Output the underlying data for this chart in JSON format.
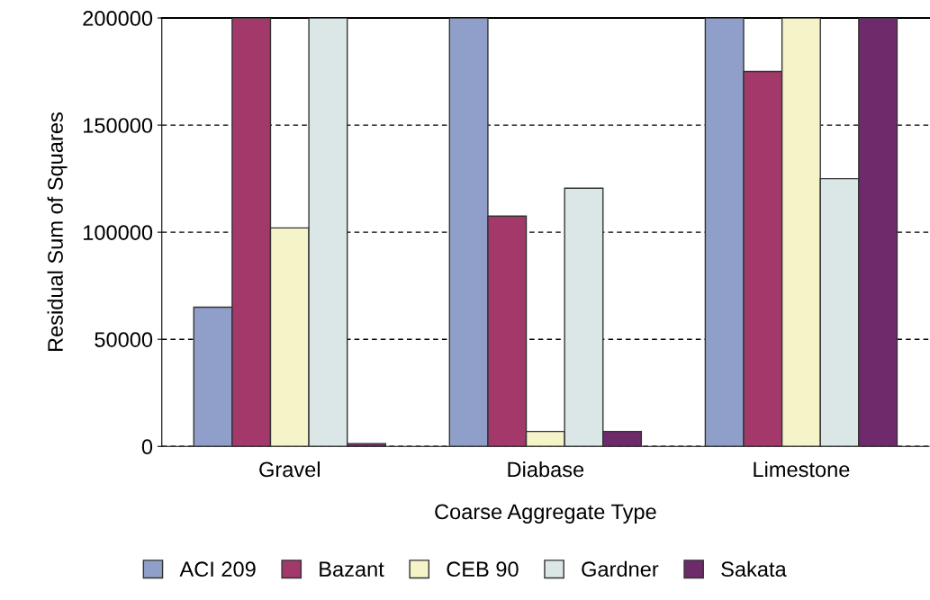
{
  "chart_data": {
    "type": "bar",
    "xlabel": "Coarse Aggregate Type",
    "ylabel": "Residual Sum of Squares",
    "categories": [
      "Gravel",
      "Diabase",
      "Limestone"
    ],
    "series": [
      {
        "name": "ACI 209",
        "color": "#8f9fc9",
        "values": [
          65000,
          200000,
          200000
        ]
      },
      {
        "name": "Bazant",
        "color": "#a3386b",
        "values": [
          200000,
          107500,
          175000
        ]
      },
      {
        "name": "CEB 90",
        "color": "#f5f3c8",
        "values": [
          102000,
          7000,
          200000
        ]
      },
      {
        "name": "Gardner",
        "color": "#dbe6e6",
        "values": [
          200000,
          120500,
          125000
        ]
      },
      {
        "name": "Sakata",
        "color": "#6f2a6c",
        "values": [
          1300,
          7000,
          200000
        ]
      }
    ],
    "ylim": [
      0,
      200000
    ],
    "yticks": [
      0,
      50000,
      100000,
      150000,
      200000
    ],
    "grid": "y",
    "legend": "bottom"
  }
}
